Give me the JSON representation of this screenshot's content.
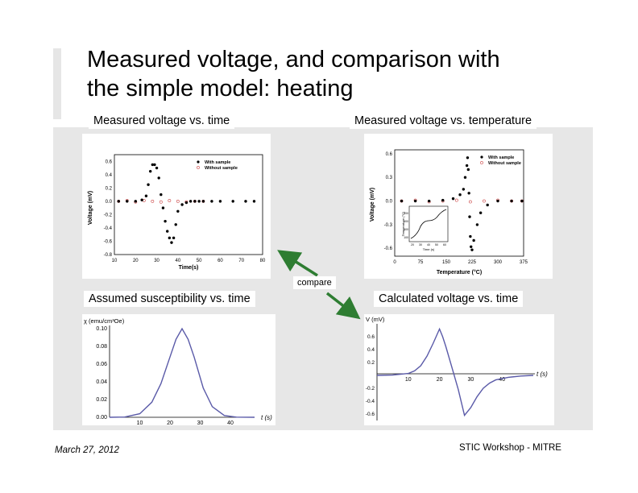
{
  "slide": {
    "title_line1": "Measured voltage, and comparison with",
    "title_line2": "the simple model: heating",
    "caption_tl": "Measured voltage vs. time",
    "caption_tr": "Measured voltage vs. temperature",
    "caption_bl": "Assumed susceptibility vs. time",
    "caption_br": "Calculated voltage vs. time",
    "compare_label": "compare",
    "footer_date": "March 27, 2012",
    "footer_org": "STIC Workshop - MITRE"
  },
  "chart_data": [
    {
      "type": "scatter",
      "xlabel": "Time(s)",
      "ylabel": "Voltage (mV)",
      "xticks": [
        "10",
        "20",
        "30",
        "40",
        "50",
        "60",
        "70",
        "80"
      ],
      "yticks": [
        "0.6",
        "0.4",
        "0.2",
        "0.0",
        "-0.2",
        "-0.4",
        "-0.6",
        "-0.8"
      ],
      "xlim": [
        10,
        80
      ],
      "ylim": [
        -0.8,
        0.7
      ],
      "legend": [
        "With sample",
        "Without sample"
      ],
      "legend_position": "top-right",
      "series": [
        {
          "name": "With sample",
          "x": [
            12,
            16,
            20,
            23,
            25,
            26,
            27,
            28,
            29,
            30,
            31,
            32,
            33,
            34,
            35,
            36,
            37,
            38,
            39,
            40,
            42,
            44,
            46,
            48,
            50,
            52,
            56,
            60,
            66,
            72,
            76
          ],
          "y": [
            0,
            0,
            0,
            0.02,
            0.08,
            0.25,
            0.45,
            0.55,
            0.55,
            0.5,
            0.35,
            0.1,
            -0.1,
            -0.3,
            -0.45,
            -0.55,
            -0.62,
            -0.55,
            -0.35,
            -0.15,
            -0.05,
            -0.02,
            0,
            0,
            0,
            0,
            0,
            0,
            0,
            0,
            0
          ]
        },
        {
          "name": "Without sample",
          "x": [
            12,
            16,
            20,
            24,
            28,
            32,
            36,
            40,
            44,
            48,
            52
          ],
          "y": [
            0,
            0.01,
            -0.01,
            0.01,
            0,
            -0.01,
            0.01,
            0,
            -0.01,
            0,
            0
          ]
        }
      ]
    },
    {
      "type": "scatter",
      "xlabel": "Temperature (°C)",
      "ylabel": "Voltage (mV)",
      "xticks": [
        "0",
        "75",
        "150",
        "225",
        "300",
        "375"
      ],
      "yticks": [
        "0.6",
        "0.3",
        "0.0",
        "-0.3",
        "-0.6"
      ],
      "xlim": [
        0,
        375
      ],
      "ylim": [
        -0.7,
        0.65
      ],
      "legend": [
        "With sample",
        "Without sample"
      ],
      "legend_position": "top-right",
      "inset": {
        "xlabel": "Time (s)",
        "ylabel": "Temperature (°C)",
        "xticks": [
          "20",
          "30",
          "40",
          "50",
          "60"
        ],
        "yticks": [
          "100",
          "200",
          "300",
          "400"
        ]
      },
      "series": [
        {
          "name": "With sample",
          "x": [
            20,
            60,
            100,
            140,
            170,
            190,
            200,
            205,
            210,
            212,
            214,
            216,
            218,
            220,
            222,
            225,
            230,
            240,
            250,
            270,
            300,
            340,
            370
          ],
          "y": [
            0,
            0,
            0,
            0.01,
            0.03,
            0.08,
            0.15,
            0.3,
            0.45,
            0.55,
            0.4,
            0.1,
            -0.2,
            -0.45,
            -0.58,
            -0.62,
            -0.5,
            -0.3,
            -0.15,
            -0.05,
            0,
            0,
            0
          ]
        },
        {
          "name": "Without sample",
          "x": [
            20,
            60,
            100,
            140,
            180,
            220,
            260,
            300,
            340,
            370
          ],
          "y": [
            0,
            0.01,
            -0.01,
            0,
            0.01,
            -0.01,
            0,
            0.01,
            0,
            0
          ]
        }
      ]
    },
    {
      "type": "line",
      "ylabel": "χ (emu/cm³Oe)",
      "xlabel": "t (s)",
      "xticks": [
        "10",
        "20",
        "30",
        "40"
      ],
      "yticks": [
        "0.10",
        "0.08",
        "0.06",
        "0.04",
        "0.02",
        "0.00"
      ],
      "xlim": [
        0,
        48
      ],
      "ylim": [
        0,
        0.1
      ],
      "series": [
        {
          "x": [
            0,
            5,
            10,
            14,
            17,
            20,
            22,
            24,
            26,
            28,
            31,
            34,
            38,
            42,
            48
          ],
          "y": [
            0,
            0.0003,
            0.004,
            0.017,
            0.038,
            0.068,
            0.088,
            0.1,
            0.088,
            0.068,
            0.033,
            0.012,
            0.002,
            0.0002,
            0
          ]
        }
      ]
    },
    {
      "type": "line",
      "ylabel": "V (mV)",
      "xlabel": "t (s)",
      "xticks": [
        "10",
        "20",
        "30",
        "40"
      ],
      "yticks": [
        "0.6",
        "0.4",
        "0.2",
        "-0.2",
        "-0.4",
        "-0.6"
      ],
      "xlim": [
        0,
        50
      ],
      "ylim": [
        -0.7,
        0.8
      ],
      "series": [
        {
          "x": [
            0,
            5,
            10,
            12,
            14,
            16,
            18,
            20,
            21,
            22,
            24,
            26,
            28,
            30,
            32,
            34,
            36,
            38,
            42,
            46,
            50
          ],
          "y": [
            0,
            0.005,
            0.03,
            0.07,
            0.15,
            0.3,
            0.5,
            0.72,
            0.6,
            0.45,
            0.12,
            -0.22,
            -0.62,
            -0.5,
            -0.33,
            -0.2,
            -0.12,
            -0.07,
            -0.03,
            -0.01,
            0
          ]
        }
      ]
    }
  ]
}
